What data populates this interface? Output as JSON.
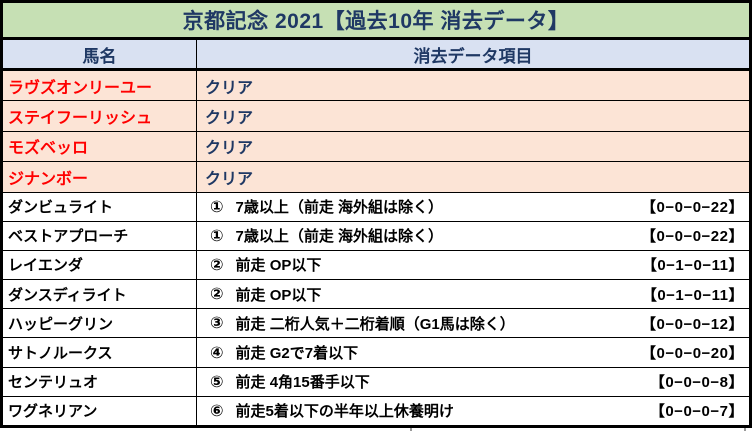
{
  "colors": {
    "title-bg": "#c6e0b4",
    "header-bg": "#d9e1f2",
    "clear-bg": "#fce4d6",
    "navy": "#1f3864",
    "red": "#ff0000",
    "border": "#000000"
  },
  "title": "京都記念 2021【過去10年 消去データ】",
  "columns": {
    "horse": "馬名",
    "data": "消去データ項目"
  },
  "clear_rows": [
    {
      "name": "ラヴズオンリーユー",
      "result": "クリア"
    },
    {
      "name": "ステイフーリッシュ",
      "result": "クリア"
    },
    {
      "name": "モズベッロ",
      "result": "クリア"
    },
    {
      "name": "ジナンボー",
      "result": "クリア"
    }
  ],
  "eliminated_rows": [
    {
      "name": "ダンビュライト",
      "no": "①",
      "criterion": "7歳以上（前走 海外組は除く）",
      "record": "【0−0−0−22】"
    },
    {
      "name": "ベストアプローチ",
      "no": "①",
      "criterion": "7歳以上（前走 海外組は除く）",
      "record": "【0−0−0−22】"
    },
    {
      "name": "レイエンダ",
      "no": "②",
      "criterion": "前走 OP以下",
      "record": "【0−1−0−11】"
    },
    {
      "name": "ダンスディライト",
      "no": "②",
      "criterion": "前走 OP以下",
      "record": "【0−1−0−11】"
    },
    {
      "name": "ハッピーグリン",
      "no": "③",
      "criterion": "前走 二桁人気＋二桁着順（G1馬は除く）",
      "record": "【0−0−0−12】"
    },
    {
      "name": "サトノルークス",
      "no": "④",
      "criterion": "前走 G2で7着以下",
      "record": "【0−0−0−20】"
    },
    {
      "name": "センテリュオ",
      "no": "⑤",
      "criterion": "前走 4角15番手以下",
      "record": "【0−0−0−8】"
    },
    {
      "name": "ワグネリアン",
      "no": "⑥",
      "criterion": "前走5着以下の半年以上休養明け",
      "record": "【0−0−0−7】"
    }
  ]
}
